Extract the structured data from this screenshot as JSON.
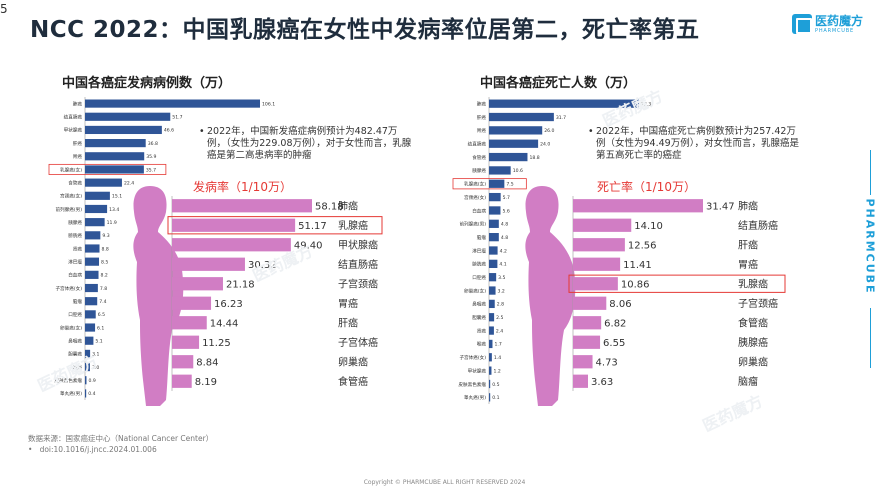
{
  "page_number": "5",
  "title": "NCC 2022：中国乳腺癌在女性中发病率位居第二，死亡率第五",
  "logo": {
    "cn": "医药魔方",
    "en": "PHARMCUBE"
  },
  "side_brand": "PHARMCUBE",
  "watermark_text": "医药魔方",
  "colors": {
    "blue": "#2f5597",
    "pink": "#d17dc4",
    "accent": "#e53935",
    "brand": "#1e9fd8"
  },
  "left_panel": {
    "title": "中国各癌症发病病例数（万）",
    "note": "2022年，中国新发癌症病例预计为482.47万例，（女性为229.08万例），对于女性而言，乳腺癌是第二高患病率的肿瘤",
    "rate_label": "发病率（1/10万）"
  },
  "right_panel": {
    "title": "中国各癌症死亡人数（万）",
    "note": "2022年，中国癌症死亡病例数预计为257.42万例（女性为94.49万例），对女性而言，乳腺癌是第五高死亡率的癌症",
    "rate_label": "死亡率（1/10万）"
  },
  "footer": {
    "source": "数据来源：国家癌症中心（National Cancer Center）",
    "doi": "doi:10.1016/j.jncc.2024.01.006",
    "copyright": "Copyright © PHARMCUBE ALL RIGHT RESERVED 2024"
  },
  "chart_data": [
    {
      "type": "bar",
      "orientation": "horizontal",
      "title": "中国各癌症发病病例数（万）",
      "highlight": "乳腺癌(女)",
      "categories": [
        "肺癌",
        "结直肠癌",
        "甲状腺癌",
        "肝癌",
        "胃癌",
        "乳腺癌(女)",
        "食管癌",
        "宫颈癌(女)",
        "前列腺癌(男)",
        "胰腺癌",
        "膀胱癌",
        "肾癌",
        "淋巴瘤",
        "白血病",
        "子宫体癌(女)",
        "脑瘤",
        "口腔癌",
        "卵巢癌(女)",
        "鼻咽癌",
        "胆囊癌",
        "喉癌",
        "皮肤黑色素瘤",
        "睾丸癌(男)"
      ],
      "values": [
        106.1,
        51.7,
        46.6,
        36.8,
        35.9,
        35.7,
        22.4,
        15.1,
        13.4,
        11.9,
        9.3,
        8.8,
        8.5,
        8.2,
        7.8,
        7.4,
        6.5,
        6.1,
        5.1,
        3.1,
        3.0,
        0.9,
        0.4
      ],
      "labels": [
        "106.1",
        "51.7",
        "46.6",
        "36.8",
        "35.9",
        "35.7",
        "22.4",
        "15.1",
        "13.4",
        "11.9",
        "9.3",
        "8.8",
        "8.5",
        "8.2",
        "7.8",
        "7.4",
        "6.5",
        "6.1",
        "5.1",
        "3.1",
        "3.0",
        "0.9",
        "0.4"
      ]
    },
    {
      "type": "bar",
      "orientation": "horizontal",
      "title": "发病率（1/10万）",
      "highlight": "乳腺癌",
      "categories": [
        "肺癌",
        "乳腺癌",
        "甲状腺癌",
        "结直肠癌",
        "子宫颈癌",
        "胃癌",
        "肝癌",
        "子宫体癌",
        "卵巢癌",
        "食管癌"
      ],
      "values": [
        58.18,
        51.17,
        49.4,
        30.32,
        21.18,
        16.23,
        14.44,
        11.25,
        8.84,
        8.19
      ],
      "labels": [
        "58.18",
        "51.17",
        "49.40",
        "30.32",
        "21.18",
        "16.23",
        "14.44",
        "11.25",
        "8.84",
        "8.19"
      ]
    },
    {
      "type": "bar",
      "orientation": "horizontal",
      "title": "中国各癌症死亡人数（万）",
      "highlight": "乳腺癌(女)",
      "categories": [
        "肺癌",
        "肝癌",
        "胃癌",
        "结直肠癌",
        "食管癌",
        "胰腺癌",
        "乳腺癌(女)",
        "宫颈癌(女)",
        "白血病",
        "前列腺癌(男)",
        "脑瘤",
        "淋巴瘤",
        "膀胱癌",
        "口腔癌",
        "卵巢癌(女)",
        "鼻咽癌",
        "胆囊癌",
        "肾癌",
        "喉癌",
        "子宫体癌(女)",
        "甲状腺癌",
        "皮肤黑色素瘤",
        "睾丸癌(男)"
      ],
      "values": [
        73.3,
        31.7,
        26.0,
        24.0,
        18.8,
        10.6,
        7.5,
        5.7,
        5.6,
        4.8,
        4.8,
        4.2,
        4.1,
        3.5,
        3.2,
        2.8,
        2.5,
        2.4,
        1.7,
        1.4,
        1.2,
        0.5,
        0.1
      ],
      "labels": [
        "73.3",
        "31.7",
        "26.0",
        "24.0",
        "18.8",
        "10.6",
        "7.5",
        "5.7",
        "5.6",
        "4.8",
        "4.8",
        "4.2",
        "4.1",
        "3.5",
        "3.2",
        "2.8",
        "2.5",
        "2.4",
        "1.7",
        "1.4",
        "1.2",
        "0.5",
        "0.1"
      ]
    },
    {
      "type": "bar",
      "orientation": "horizontal",
      "title": "死亡率（1/10万）",
      "highlight": "乳腺癌",
      "categories": [
        "肺癌",
        "结直肠癌",
        "肝癌",
        "胃癌",
        "乳腺癌",
        "子宫颈癌",
        "食管癌",
        "胰腺癌",
        "卵巢癌",
        "脑瘤"
      ],
      "values": [
        31.47,
        14.1,
        12.56,
        11.41,
        10.86,
        8.06,
        6.82,
        6.55,
        4.73,
        3.63
      ],
      "labels": [
        "31.47",
        "14.10",
        "12.56",
        "11.41",
        "10.86",
        "8.06",
        "6.82",
        "6.55",
        "4.73",
        "3.63"
      ]
    }
  ]
}
